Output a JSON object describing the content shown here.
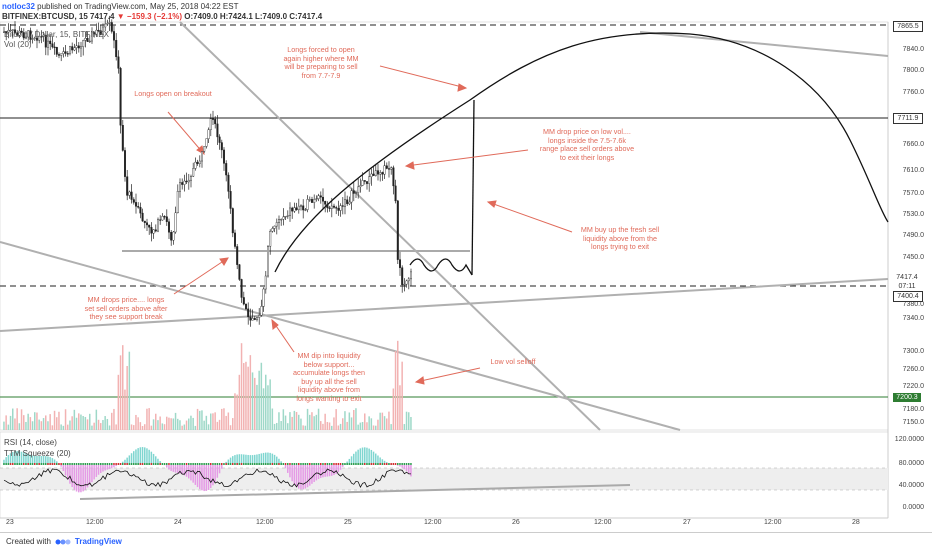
{
  "header": {
    "author": "notloc32",
    "published": "published on TradingView.com, May 25, 2018 04:22 EST",
    "symbol_line": "BITFINEX:BTCUSD, 15",
    "price": "7417.4",
    "change": "−159.3 (−2.1%)",
    "ohlc": "O:7409.0 H:7424.1 L:7409.0 C:7417.4"
  },
  "legend": {
    "series_title": "Bitcoin / Dollar, 15, BITFINEX",
    "volume": "Vol (20)"
  },
  "price_axis": {
    "labels": [
      "7840.0",
      "7800.0",
      "7760.0",
      "7660.0",
      "7610.0",
      "7570.0",
      "7530.0",
      "7490.0",
      "7450.0",
      "7380.0",
      "7340.0",
      "7300.0",
      "7260.0",
      "7220.0",
      "7180.0",
      "7150.0"
    ],
    "tags": [
      {
        "text": "7865.5",
        "color": "#333333"
      },
      {
        "text": "7711.9",
        "color": "#333333"
      },
      {
        "text": "7417.4",
        "color": "#ffffff"
      },
      {
        "text": "07:11",
        "color": "#ffffff"
      },
      {
        "text": "7400.4",
        "color": "#333333"
      },
      {
        "text": "7200.3",
        "color": "#2e7d32"
      }
    ]
  },
  "rsi_axis": {
    "labels": [
      "120.0000",
      "80.0000",
      "40.0000",
      "0.0000"
    ]
  },
  "rsi_legend": {
    "rsi": "RSI (14, close)",
    "ttm": "TTM Squeeze (20)"
  },
  "time_axis": {
    "labels": [
      "23",
      "12:00",
      "24",
      "12:00",
      "25",
      "12:00",
      "26",
      "12:00",
      "27",
      "12:00",
      "28"
    ]
  },
  "annotations": [
    {
      "id": "longs-forced",
      "text": "Longs forced to open\nagain higher where MM\nwill be preparing to sell\nfrom 7.7-7.9"
    },
    {
      "id": "longs-breakout",
      "text": "Longs open on breakout"
    },
    {
      "id": "mm-drop-low-vol",
      "text": "MM drop price on low vol....\nlongs inside the 7.5-7.6k\nrange place sell orders above\nto exit their longs"
    },
    {
      "id": "mm-buy-fresh",
      "text": "MM buy up the fresh sell\nliquidity above from the\nlongs trying to exit"
    },
    {
      "id": "mm-drops-price",
      "text": "MM drops price.... longs\nset sell orders above after\nthey see support break"
    },
    {
      "id": "mm-dip",
      "text": "MM dip into liquidity\nbelow support...\naccumulate longs then\nbuy up all the sell\nliquidity above from\nlongs wanting to exit"
    },
    {
      "id": "low-vol-selloff",
      "text": "Low vol selloff"
    }
  ],
  "colors": {
    "note": "#e06a5a",
    "candle": "#222222",
    "trendline": "#b0b0b0",
    "support_line": "#2e7d32",
    "vol_up": "#9ed8c8",
    "vol_down": "#f2b2b2"
  },
  "footer": {
    "created_with": "Created with",
    "brand": "TradingView"
  }
}
